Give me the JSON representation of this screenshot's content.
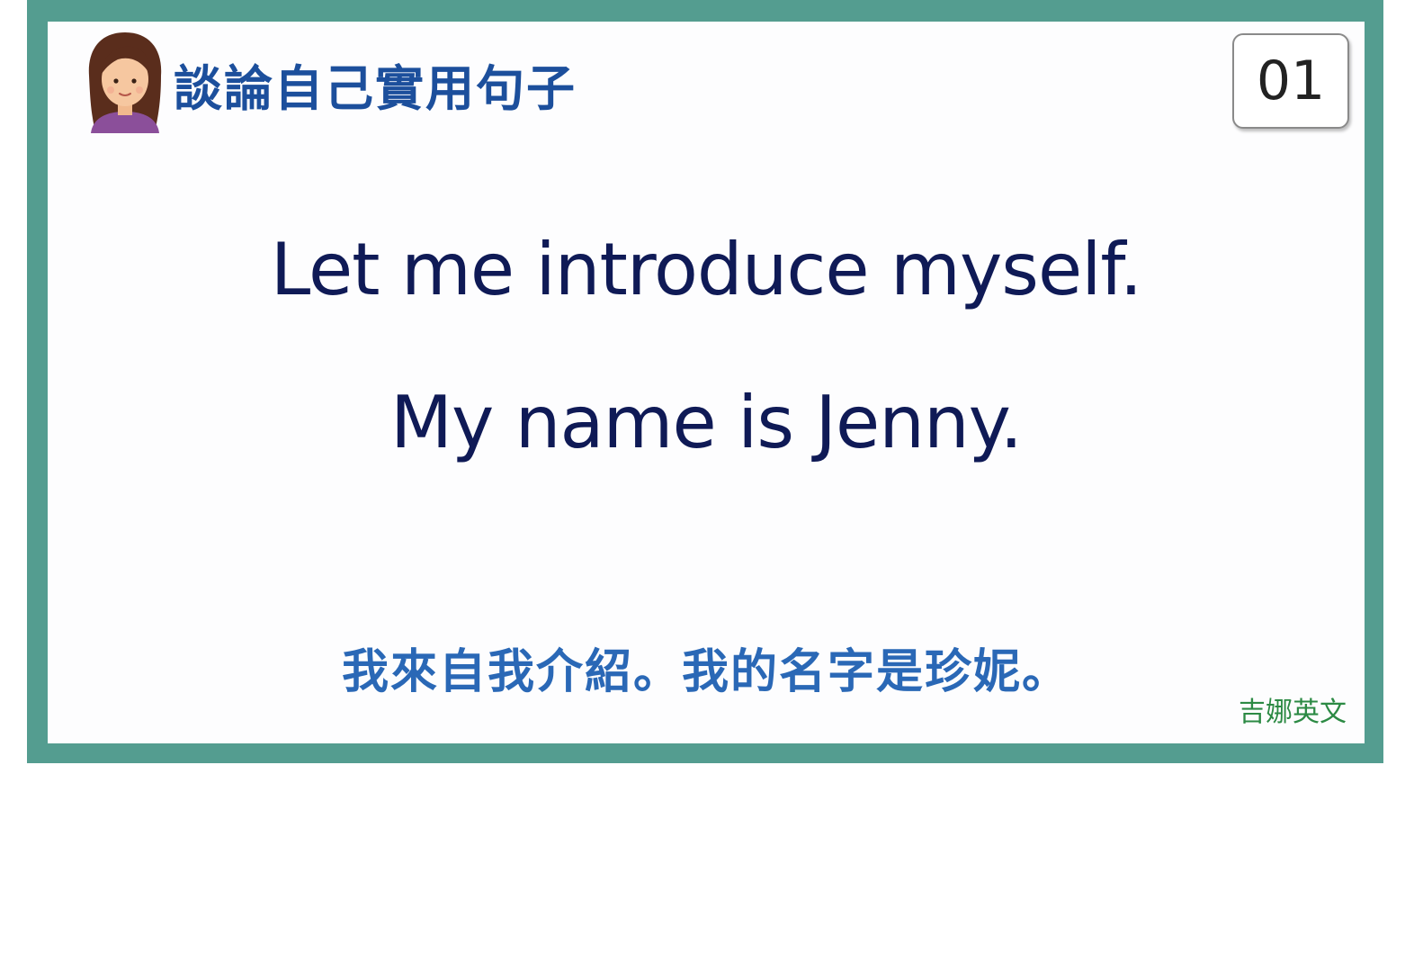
{
  "header": {
    "topic_title": "談論自己實用句子",
    "page_number": "01"
  },
  "content": {
    "sentences": [
      "Let me introduce myself.",
      "My name is Jenny."
    ],
    "translation": "我來自我介紹。我的名字是珍妮。"
  },
  "footer": {
    "brand": "吉娜英文"
  },
  "colors": {
    "frame": "#549d90",
    "title": "#1c4f9c",
    "sentence": "#0f1a56",
    "translation": "#2a68b6",
    "brand": "#2c8a44"
  },
  "icons": {
    "avatar": "woman-avatar-icon"
  }
}
